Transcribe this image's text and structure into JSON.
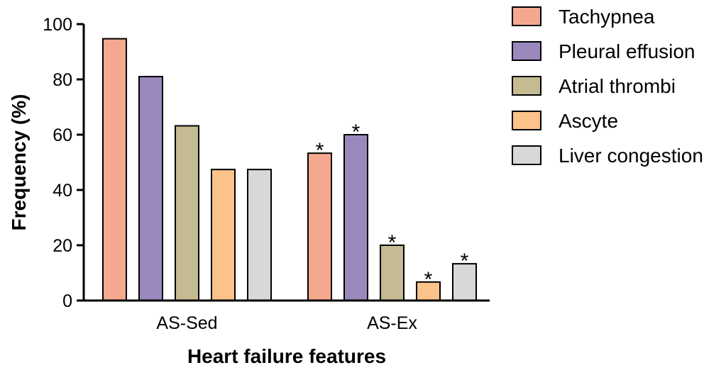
{
  "chart_data": {
    "type": "bar",
    "title": "",
    "xlabel": "Heart failure features",
    "ylabel": "Frequency (%)",
    "ylim": [
      0,
      100
    ],
    "yticks": [
      0,
      20,
      40,
      60,
      80,
      100
    ],
    "categories": [
      "AS-Sed",
      "AS-Ex"
    ],
    "series": [
      {
        "name": "Tachypnea",
        "color": "#f4a98f",
        "values": [
          94.7,
          53.3
        ],
        "significant": [
          false,
          true
        ]
      },
      {
        "name": "Pleural effusion",
        "color": "#9b88bd",
        "values": [
          81.0,
          60.0
        ],
        "significant": [
          false,
          true
        ]
      },
      {
        "name": "Atrial thrombi",
        "color": "#c5bb92",
        "values": [
          63.2,
          20.0
        ],
        "significant": [
          false,
          true
        ]
      },
      {
        "name": "Ascyte",
        "color": "#fbc28a",
        "values": [
          47.4,
          6.7
        ],
        "significant": [
          false,
          true
        ]
      },
      {
        "name": "Liver congestion",
        "color": "#d8d8d8",
        "values": [
          47.4,
          13.3
        ],
        "significant": [
          false,
          true
        ]
      }
    ],
    "significance_marker": "*",
    "legend_position": "top-right",
    "grid": false
  }
}
